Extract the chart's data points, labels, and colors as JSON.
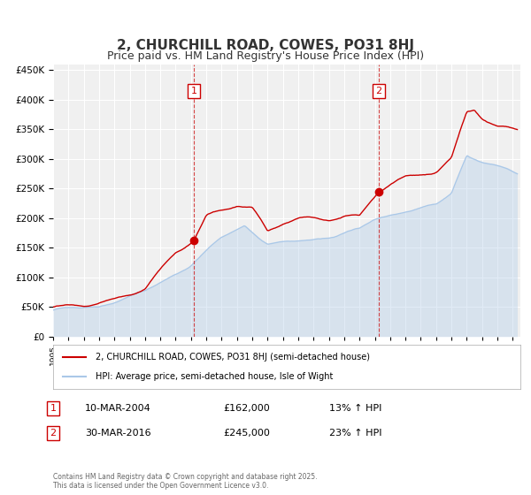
{
  "title": "2, CHURCHILL ROAD, COWES, PO31 8HJ",
  "subtitle": "Price paid vs. HM Land Registry's House Price Index (HPI)",
  "title_fontsize": 11,
  "subtitle_fontsize": 9,
  "background_color": "#ffffff",
  "plot_bg_color": "#f0f0f0",
  "grid_color": "#ffffff",
  "ylim": [
    0,
    460000
  ],
  "yticks": [
    0,
    50000,
    100000,
    150000,
    200000,
    250000,
    300000,
    350000,
    400000,
    450000
  ],
  "xmin": 1995,
  "xmax": 2025.5,
  "red_color": "#cc0000",
  "blue_color": "#aac8e8",
  "marker1_date": 2004.19,
  "marker1_value": 162000,
  "marker2_date": 2016.24,
  "marker2_value": 245000,
  "vline1_x": 2004.19,
  "vline2_x": 2016.24,
  "legend_label_red": "2, CHURCHILL ROAD, COWES, PO31 8HJ (semi-detached house)",
  "legend_label_blue": "HPI: Average price, semi-detached house, Isle of Wight",
  "annotation1_date": "10-MAR-2004",
  "annotation1_price": "£162,000",
  "annotation1_hpi": "13% ↑ HPI",
  "annotation2_date": "30-MAR-2016",
  "annotation2_price": "£245,000",
  "annotation2_hpi": "23% ↑ HPI",
  "footer": "Contains HM Land Registry data © Crown copyright and database right 2025.\nThis data is licensed under the Open Government Licence v3.0."
}
